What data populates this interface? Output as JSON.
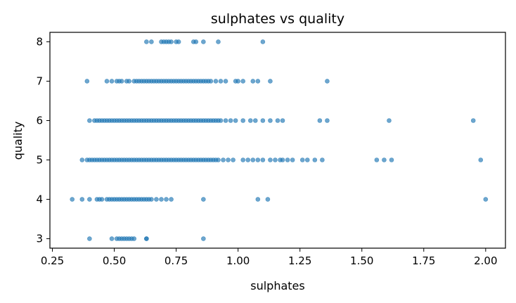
{
  "chart_data": {
    "type": "scatter",
    "title": "sulphates vs quality",
    "xlabel": "sulphates",
    "ylabel": "quality",
    "xlim": [
      0.24,
      2.08
    ],
    "ylim": [
      2.76,
      8.24
    ],
    "xticks": [
      0.25,
      0.5,
      0.75,
      1.0,
      1.25,
      1.5,
      1.75,
      2.0
    ],
    "xtick_labels": [
      "0.25",
      "0.50",
      "0.75",
      "1.00",
      "1.25",
      "1.50",
      "1.75",
      "2.00"
    ],
    "yticks": [
      3,
      4,
      5,
      6,
      7,
      8
    ],
    "ytick_labels": [
      "3",
      "4",
      "5",
      "6",
      "7",
      "8"
    ],
    "grid": false,
    "marker_color": "#1f77b4",
    "marker_alpha": 0.65,
    "points": {
      "3": [
        0.4,
        0.49,
        0.51,
        0.52,
        0.53,
        0.54,
        0.55,
        0.56,
        0.57,
        0.58,
        0.63,
        0.63,
        0.86
      ],
      "4": [
        0.33,
        0.37,
        0.4,
        0.43,
        0.44,
        0.45,
        0.47,
        0.48,
        0.49,
        0.5,
        0.51,
        0.52,
        0.53,
        0.54,
        0.55,
        0.56,
        0.57,
        0.58,
        0.59,
        0.6,
        0.61,
        0.62,
        0.63,
        0.64,
        0.65,
        0.67,
        0.69,
        0.71,
        0.73,
        0.86,
        1.08,
        1.12,
        2.0
      ],
      "5": [
        0.37,
        0.39,
        0.4,
        0.41,
        0.42,
        0.43,
        0.44,
        0.45,
        0.46,
        0.47,
        0.48,
        0.49,
        0.5,
        0.51,
        0.52,
        0.53,
        0.54,
        0.55,
        0.56,
        0.57,
        0.58,
        0.59,
        0.6,
        0.61,
        0.62,
        0.63,
        0.64,
        0.65,
        0.66,
        0.67,
        0.68,
        0.69,
        0.7,
        0.71,
        0.72,
        0.73,
        0.74,
        0.75,
        0.76,
        0.77,
        0.78,
        0.79,
        0.8,
        0.81,
        0.82,
        0.83,
        0.84,
        0.85,
        0.86,
        0.87,
        0.88,
        0.89,
        0.9,
        0.91,
        0.92,
        0.94,
        0.96,
        0.98,
        1.02,
        1.04,
        1.06,
        1.08,
        1.1,
        1.13,
        1.15,
        1.17,
        1.18,
        1.2,
        1.22,
        1.26,
        1.28,
        1.31,
        1.34,
        1.56,
        1.59,
        1.62,
        1.98
      ],
      "6": [
        0.4,
        0.42,
        0.43,
        0.44,
        0.45,
        0.46,
        0.47,
        0.48,
        0.49,
        0.5,
        0.51,
        0.52,
        0.53,
        0.54,
        0.55,
        0.56,
        0.57,
        0.58,
        0.59,
        0.6,
        0.61,
        0.62,
        0.63,
        0.64,
        0.65,
        0.66,
        0.67,
        0.68,
        0.69,
        0.7,
        0.71,
        0.72,
        0.73,
        0.74,
        0.75,
        0.76,
        0.77,
        0.78,
        0.79,
        0.8,
        0.81,
        0.82,
        0.83,
        0.84,
        0.85,
        0.86,
        0.87,
        0.88,
        0.89,
        0.9,
        0.91,
        0.92,
        0.93,
        0.95,
        0.97,
        0.99,
        1.02,
        1.05,
        1.07,
        1.1,
        1.13,
        1.16,
        1.18,
        1.33,
        1.36,
        1.61,
        1.95
      ],
      "7": [
        0.39,
        0.47,
        0.49,
        0.51,
        0.52,
        0.53,
        0.55,
        0.56,
        0.58,
        0.59,
        0.6,
        0.61,
        0.62,
        0.63,
        0.64,
        0.65,
        0.66,
        0.67,
        0.68,
        0.69,
        0.7,
        0.71,
        0.72,
        0.73,
        0.74,
        0.75,
        0.76,
        0.77,
        0.78,
        0.79,
        0.8,
        0.81,
        0.82,
        0.83,
        0.84,
        0.85,
        0.86,
        0.87,
        0.88,
        0.89,
        0.91,
        0.93,
        0.95,
        0.99,
        1.0,
        1.02,
        1.06,
        1.08,
        1.13,
        1.36
      ],
      "8": [
        0.63,
        0.65,
        0.69,
        0.7,
        0.71,
        0.72,
        0.73,
        0.75,
        0.76,
        0.82,
        0.83,
        0.86,
        0.92,
        1.1
      ]
    }
  }
}
